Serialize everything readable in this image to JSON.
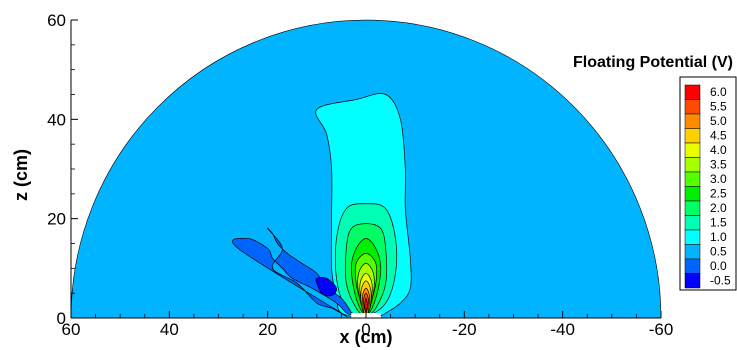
{
  "chart_data": {
    "type": "contour",
    "xlabel": "x (cm)",
    "ylabel": "z (cm)",
    "xlim": [
      60,
      -60
    ],
    "ylim": [
      0,
      60
    ],
    "xticks": [
      "60",
      "40",
      "20",
      "0",
      "-20",
      "-40",
      "-60"
    ],
    "yticks": [
      "0",
      "20",
      "40",
      "60"
    ],
    "legend": {
      "title": "Floating Potential (V)",
      "position": "right",
      "levels": [
        {
          "value": "6.0",
          "color": "#ff0000"
        },
        {
          "value": "5.5",
          "color": "#ff4a00"
        },
        {
          "value": "5.0",
          "color": "#ff8c00"
        },
        {
          "value": "4.5",
          "color": "#ffd000"
        },
        {
          "value": "4.0",
          "color": "#e8ff00"
        },
        {
          "value": "3.5",
          "color": "#a8ff00"
        },
        {
          "value": "3.0",
          "color": "#55ff00"
        },
        {
          "value": "2.5",
          "color": "#00ee00"
        },
        {
          "value": "2.0",
          "color": "#00ff64"
        },
        {
          "value": "1.5",
          "color": "#00ffb4"
        },
        {
          "value": "1.0",
          "color": "#00ffff"
        },
        {
          "value": "0.5",
          "color": "#00b4ff"
        },
        {
          "value": "0.0",
          "color": "#0064ff"
        },
        {
          "value": "-0.5",
          "color": "#0000ff"
        }
      ]
    },
    "background_level": "0.5",
    "regions": [
      {
        "level": "1.0",
        "points": [
          [
            2,
            44
          ],
          [
            -4,
            45
          ],
          [
            -7,
            40
          ],
          [
            -8,
            30
          ],
          [
            -8,
            22
          ],
          [
            -9,
            12
          ],
          [
            -9,
            6
          ],
          [
            -7,
            3
          ],
          [
            -4,
            1
          ],
          [
            -3,
            0.5
          ],
          [
            0,
            0
          ],
          [
            5,
            1
          ],
          [
            6,
            4
          ],
          [
            7,
            10
          ],
          [
            7,
            20
          ],
          [
            7,
            30
          ],
          [
            8,
            37
          ],
          [
            10,
            42
          ]
        ]
      },
      {
        "level": "1.5",
        "points": [
          [
            0,
            23
          ],
          [
            -4,
            22
          ],
          [
            -6,
            16
          ],
          [
            -6,
            9
          ],
          [
            -4,
            3
          ],
          [
            0,
            0.5
          ],
          [
            4,
            2
          ],
          [
            6,
            8
          ],
          [
            6,
            16
          ],
          [
            4,
            22
          ]
        ]
      },
      {
        "level": "2.0",
        "points": [
          [
            0,
            19
          ],
          [
            -3,
            18
          ],
          [
            -4,
            14
          ],
          [
            -4,
            7
          ],
          [
            -2,
            2
          ],
          [
            0,
            0.5
          ],
          [
            2,
            2
          ],
          [
            4,
            7
          ],
          [
            4,
            14
          ],
          [
            3,
            18
          ]
        ]
      },
      {
        "level": "2.5",
        "points": [
          [
            0,
            16
          ],
          [
            -2,
            14
          ],
          [
            -3,
            10
          ],
          [
            -2,
            4
          ],
          [
            0,
            0.5
          ],
          [
            2,
            4
          ],
          [
            3,
            10
          ],
          [
            2,
            14
          ]
        ]
      },
      {
        "level": "3.0",
        "points": [
          [
            0,
            13
          ],
          [
            -2,
            11
          ],
          [
            -2,
            7
          ],
          [
            -1,
            3
          ],
          [
            0,
            0.5
          ],
          [
            1,
            3
          ],
          [
            2,
            7
          ],
          [
            2,
            11
          ]
        ]
      },
      {
        "level": "3.5",
        "points": [
          [
            0,
            11
          ],
          [
            -1.5,
            9
          ],
          [
            -1.5,
            5
          ],
          [
            0,
            0.5
          ],
          [
            1.5,
            5
          ],
          [
            1.5,
            9
          ]
        ]
      },
      {
        "level": "4.0",
        "points": [
          [
            0,
            9
          ],
          [
            -1.2,
            7
          ],
          [
            -1,
            3
          ],
          [
            0,
            0.5
          ],
          [
            1,
            3
          ],
          [
            1.2,
            7
          ]
        ]
      },
      {
        "level": "4.5",
        "points": [
          [
            0,
            7.5
          ],
          [
            -1,
            5.5
          ],
          [
            -0.8,
            2
          ],
          [
            0,
            0.5
          ],
          [
            0.8,
            2
          ],
          [
            1,
            5.5
          ]
        ]
      },
      {
        "level": "5.0",
        "points": [
          [
            0,
            6
          ],
          [
            -0.7,
            4.5
          ],
          [
            -0.5,
            1.5
          ],
          [
            0,
            0.5
          ],
          [
            0.5,
            1.5
          ],
          [
            0.7,
            4.5
          ]
        ]
      },
      {
        "level": "5.5",
        "points": [
          [
            0,
            5
          ],
          [
            -0.5,
            3.5
          ],
          [
            0,
            1
          ],
          [
            0.5,
            3.5
          ]
        ]
      },
      {
        "level": "6.0",
        "points": [
          [
            0,
            4
          ],
          [
            -0.3,
            2.5
          ],
          [
            0,
            1.5
          ],
          [
            0.3,
            2.5
          ]
        ]
      },
      {
        "level": "0.0",
        "points": [
          [
            26,
            14
          ],
          [
            24,
            16
          ],
          [
            20,
            14
          ],
          [
            19,
            12
          ],
          [
            17,
            10
          ],
          [
            15,
            8
          ],
          [
            11,
            6
          ],
          [
            6,
            3
          ],
          [
            4,
            1
          ],
          [
            3,
            1
          ],
          [
            5,
            4
          ],
          [
            8,
            6
          ],
          [
            10,
            9
          ],
          [
            13,
            11
          ],
          [
            16,
            13
          ],
          [
            18,
            15
          ],
          [
            19,
            17
          ],
          [
            20,
            18
          ],
          [
            17,
            14
          ],
          [
            19,
            10
          ],
          [
            14,
            7
          ],
          [
            10,
            3
          ],
          [
            7,
            2
          ],
          [
            5,
            1
          ]
        ]
      },
      {
        "level": "-0.5",
        "points": [
          [
            10,
            8
          ],
          [
            8,
            8
          ],
          [
            6,
            6
          ],
          [
            7,
            4.5
          ],
          [
            9,
            5
          ],
          [
            10,
            7
          ]
        ]
      }
    ]
  }
}
